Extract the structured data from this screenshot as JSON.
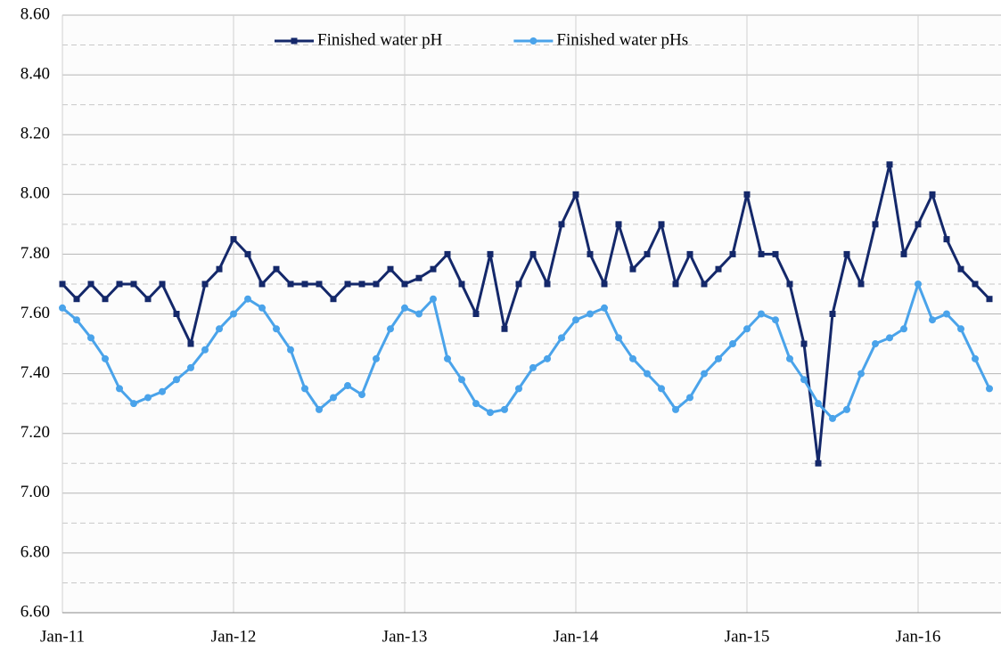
{
  "chart_data": {
    "type": "line",
    "categories": [
      "Jan-11",
      null,
      null,
      null,
      null,
      null,
      null,
      null,
      null,
      null,
      null,
      null,
      "Jan-12",
      null,
      null,
      null,
      null,
      null,
      null,
      null,
      null,
      null,
      null,
      null,
      "Jan-13",
      null,
      null,
      null,
      null,
      null,
      null,
      null,
      null,
      null,
      null,
      null,
      "Jan-14",
      null,
      null,
      null,
      null,
      null,
      null,
      null,
      null,
      null,
      null,
      null,
      "Jan-15",
      null,
      null,
      null,
      null,
      null,
      null,
      null,
      null,
      null,
      null,
      null,
      "Jan-16",
      null,
      null,
      null,
      null,
      null
    ],
    "series": [
      {
        "name": "Finished water pH",
        "color": "#14286a",
        "marker": "square",
        "values": [
          7.7,
          7.65,
          7.7,
          7.65,
          7.7,
          7.7,
          7.65,
          7.7,
          7.6,
          7.5,
          7.7,
          7.75,
          7.85,
          7.8,
          7.7,
          7.75,
          7.7,
          7.7,
          7.7,
          7.65,
          7.7,
          7.7,
          7.7,
          7.75,
          7.7,
          7.72,
          7.75,
          7.8,
          7.7,
          7.6,
          7.8,
          7.55,
          7.7,
          7.8,
          7.7,
          7.9,
          8.0,
          7.8,
          7.7,
          7.9,
          7.75,
          7.8,
          7.9,
          7.7,
          7.8,
          7.7,
          7.75,
          7.8,
          8.0,
          7.8,
          7.8,
          7.7,
          7.5,
          7.1,
          7.6,
          7.8,
          7.7,
          7.9,
          8.1,
          7.8,
          7.9,
          8.0,
          7.85,
          7.75,
          7.7,
          7.65
        ]
      },
      {
        "name": "Finished water pHs",
        "color": "#4aa3ea",
        "marker": "circle",
        "values": [
          7.62,
          7.58,
          7.52,
          7.45,
          7.35,
          7.3,
          7.32,
          7.34,
          7.38,
          7.42,
          7.48,
          7.55,
          7.6,
          7.65,
          7.62,
          7.55,
          7.48,
          7.35,
          7.28,
          7.32,
          7.36,
          7.33,
          7.45,
          7.55,
          7.62,
          7.6,
          7.65,
          7.45,
          7.38,
          7.3,
          7.27,
          7.28,
          7.35,
          7.42,
          7.45,
          7.52,
          7.58,
          7.6,
          7.62,
          7.52,
          7.45,
          7.4,
          7.35,
          7.28,
          7.32,
          7.4,
          7.45,
          7.5,
          7.55,
          7.6,
          7.58,
          7.45,
          7.38,
          7.3,
          7.25,
          7.28,
          7.4,
          7.5,
          7.52,
          7.55,
          7.7,
          7.58,
          7.6,
          7.55,
          7.45,
          7.35
        ]
      }
    ],
    "ylim": [
      6.6,
      8.6
    ],
    "yticks": [
      {
        "value": 6.6,
        "label": "6.60"
      },
      {
        "value": 6.8,
        "label": "6.80"
      },
      {
        "value": 7.0,
        "label": "7.00"
      },
      {
        "value": 7.2,
        "label": "7.20"
      },
      {
        "value": 7.4,
        "label": "7.40"
      },
      {
        "value": 7.6,
        "label": "7.60"
      },
      {
        "value": 7.8,
        "label": "7.80"
      },
      {
        "value": 8.0,
        "label": "8.00"
      },
      {
        "value": 8.2,
        "label": "8.20"
      },
      {
        "value": 8.4,
        "label": "8.40"
      },
      {
        "value": 8.6,
        "label": "8.60"
      }
    ],
    "grid": true,
    "minor_grid": true,
    "legend": "top"
  }
}
